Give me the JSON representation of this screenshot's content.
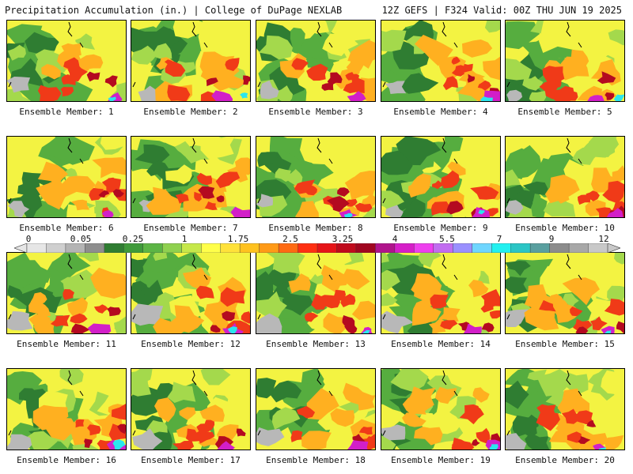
{
  "header": {
    "left": "Precipitation Accumulation (in.) | College of DuPage NEXLAB",
    "right": "12Z GEFS | F324 Valid: 00Z THU JUN 19 2025"
  },
  "members": [
    {
      "label": "Ensemble Member: 1"
    },
    {
      "label": "Ensemble Member: 2"
    },
    {
      "label": "Ensemble Member: 3"
    },
    {
      "label": "Ensemble Member: 4"
    },
    {
      "label": "Ensemble Member: 5"
    },
    {
      "label": "Ensemble Member: 6"
    },
    {
      "label": "Ensemble Member: 7"
    },
    {
      "label": "Ensemble Member: 8"
    },
    {
      "label": "Ensemble Member: 9"
    },
    {
      "label": "Ensemble Member: 10"
    },
    {
      "label": "Ensemble Member: 11"
    },
    {
      "label": "Ensemble Member: 12"
    },
    {
      "label": "Ensemble Member: 13"
    },
    {
      "label": "Ensemble Member: 14"
    },
    {
      "label": "Ensemble Member: 15"
    },
    {
      "label": "Ensemble Member: 16"
    },
    {
      "label": "Ensemble Member: 17"
    },
    {
      "label": "Ensemble Member: 18"
    },
    {
      "label": "Ensemble Member: 19"
    },
    {
      "label": "Ensemble Member: 20"
    }
  ],
  "colorbar": {
    "ticks": [
      "0",
      "0.05",
      "0.25",
      "1",
      "1.75",
      "2.5",
      "3.25",
      "4",
      "5.5",
      "7",
      "9",
      "12"
    ],
    "colors": [
      "#e6e6e6",
      "#cfcfcf",
      "#b4b4b4",
      "#8e8e8e",
      "#2f7d32",
      "#3f9a3a",
      "#5cb545",
      "#8fd14f",
      "#c6e84a",
      "#ffff4a",
      "#ffe23a",
      "#ffc21f",
      "#ff9a17",
      "#ff6a12",
      "#ff2f12",
      "#e61418",
      "#c00a1c",
      "#a00620",
      "#b0148c",
      "#d61fc8",
      "#ee40ee",
      "#c26df0",
      "#9a90ff",
      "#6fd6ff",
      "#22f0f0",
      "#2bc5c5",
      "#5aa0a0",
      "#8c8c8c",
      "#a8a8a8",
      "#c8c8c8"
    ]
  },
  "map_palette": {
    "gray": "#b8b8b8",
    "dark_green": "#2f7d32",
    "green": "#56ad3f",
    "light_green": "#a4d94c",
    "yellow": "#f3f342",
    "orange": "#ffb020",
    "red": "#f03a18",
    "dark_red": "#b40a20",
    "magenta": "#d21fc8",
    "cyan": "#2ae6ee"
  }
}
